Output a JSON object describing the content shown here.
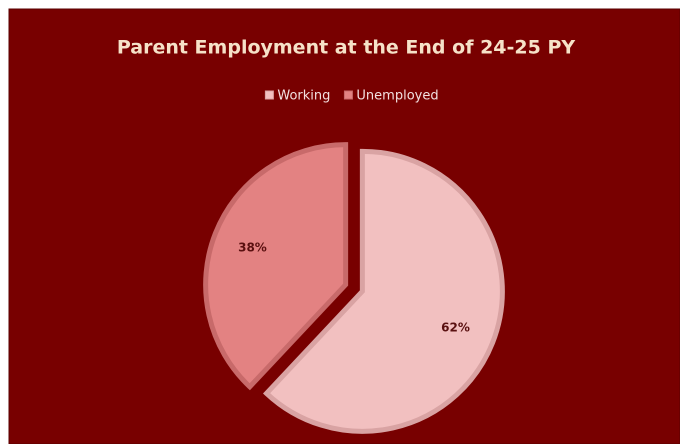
{
  "chart_data": {
    "type": "pie",
    "title": "Parent Employment at the End of 24-25 PY",
    "categories": [
      "Working",
      "Unemployed"
    ],
    "values": [
      62,
      38
    ],
    "value_labels": [
      "62%",
      "38%"
    ],
    "colors": [
      "#f2c0c0",
      "#e38282"
    ],
    "legend": "top"
  }
}
